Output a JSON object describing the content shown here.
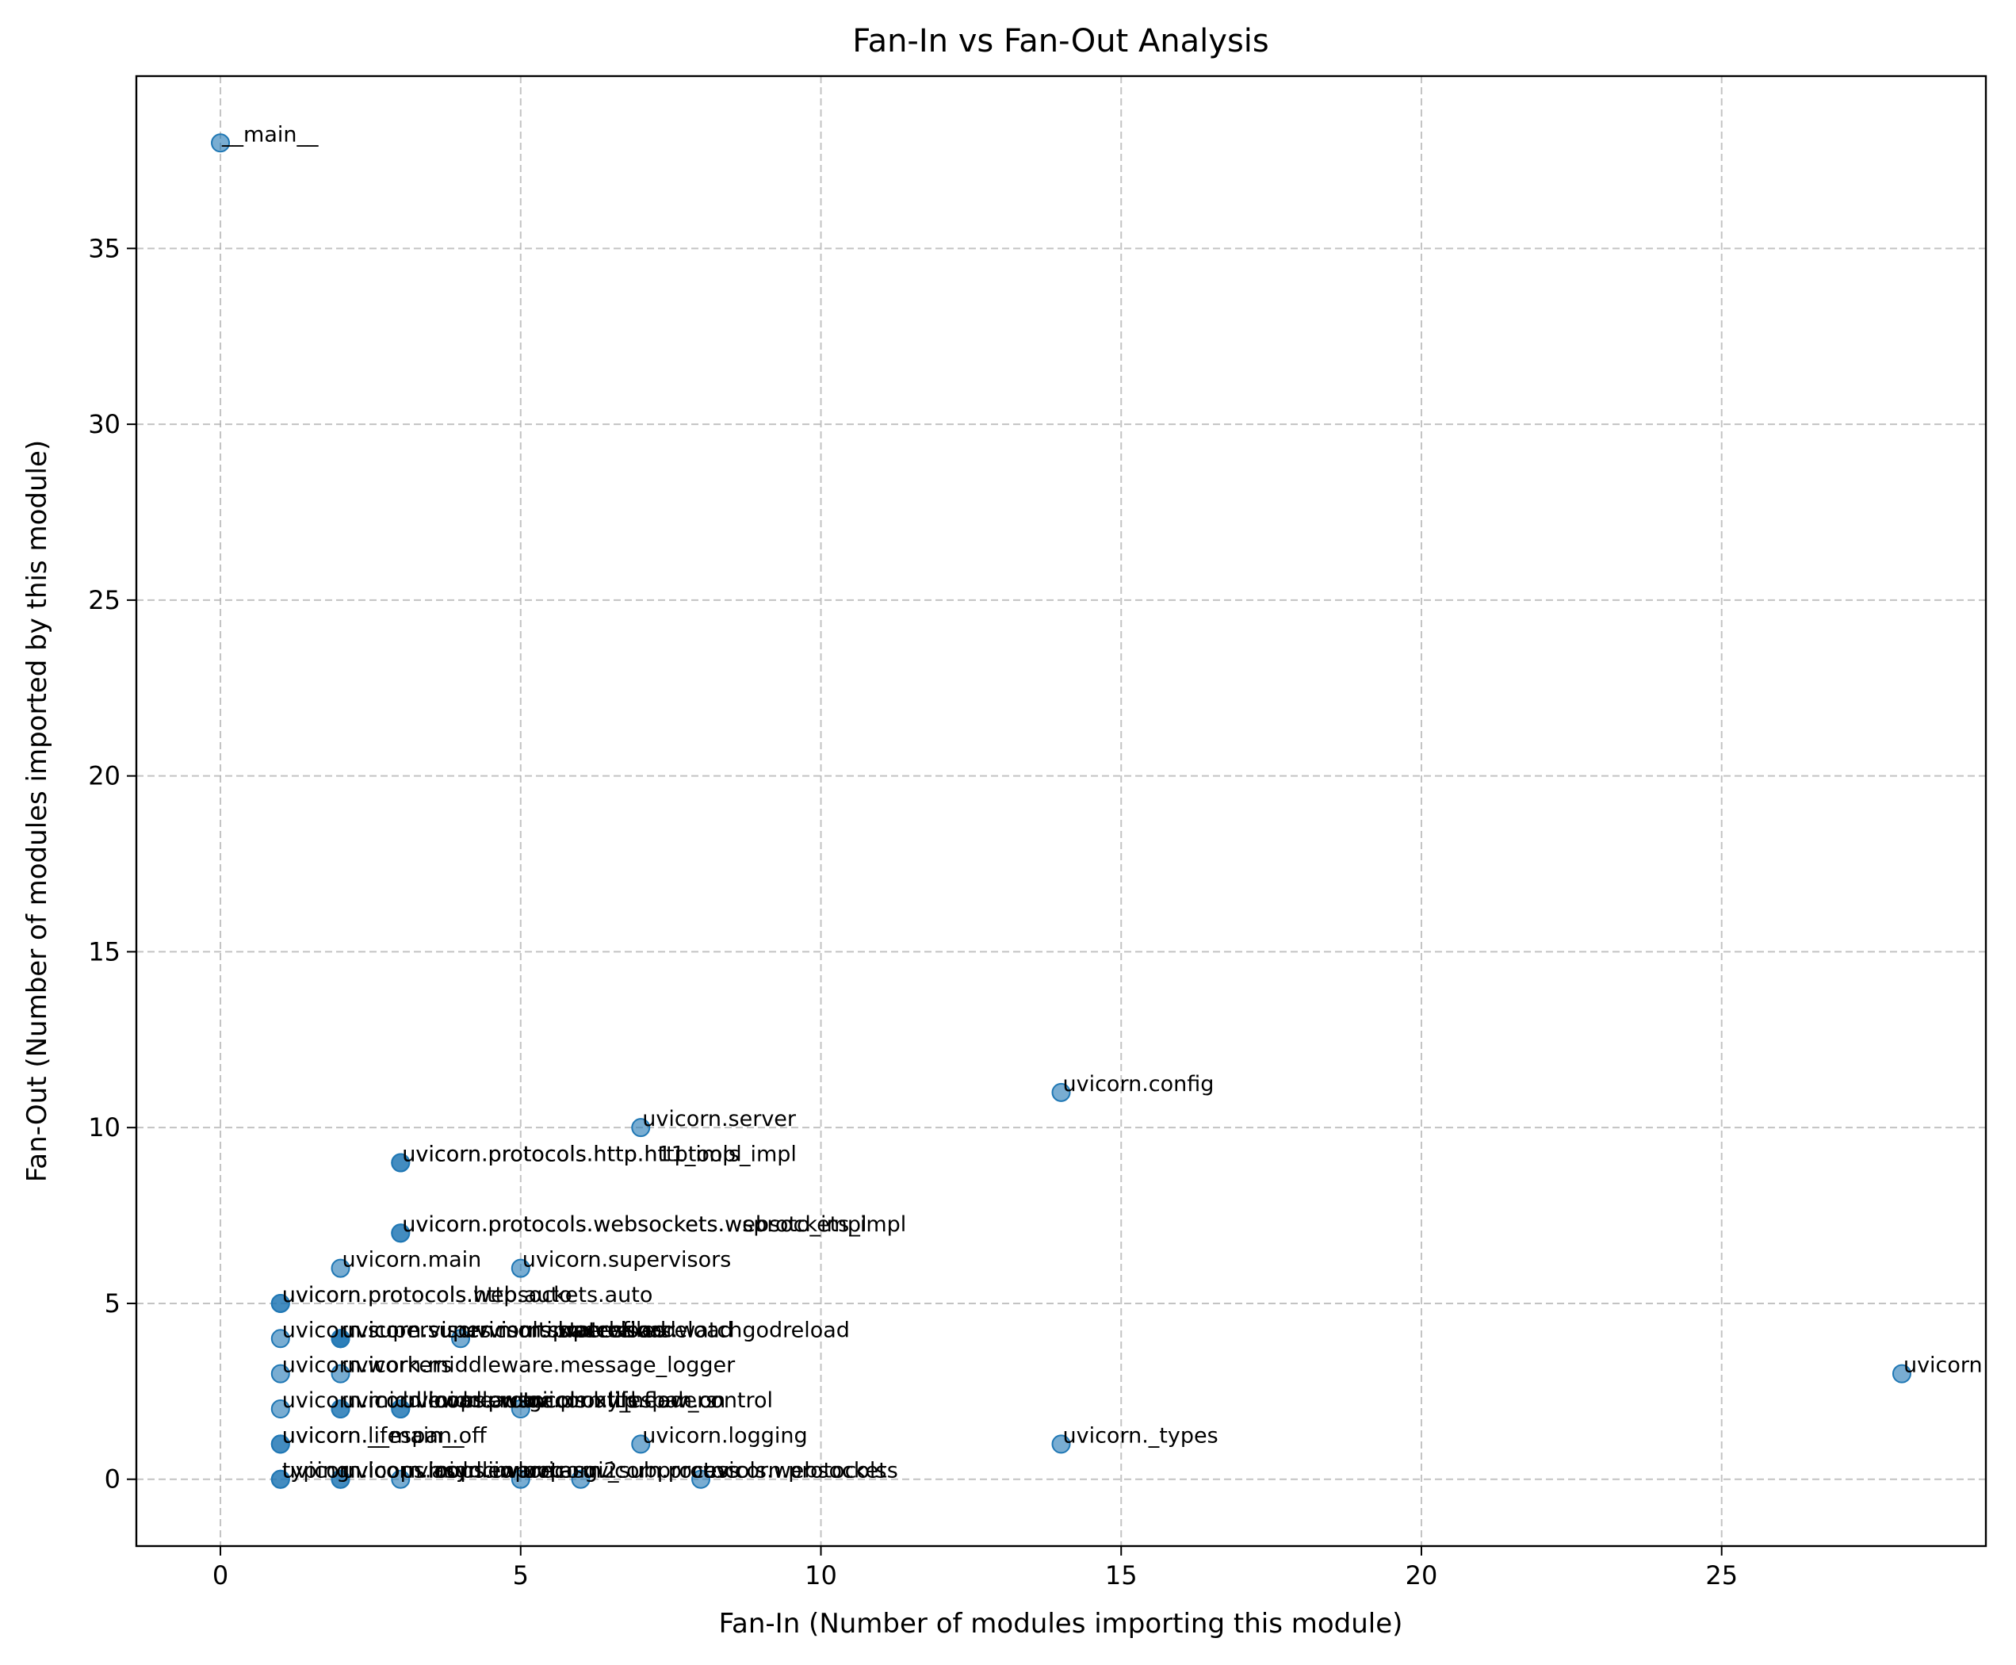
{
  "chart_data": {
    "type": "scatter",
    "title": "Fan-In vs Fan-Out Analysis",
    "xlabel": "Fan-In (Number of modules importing this module)",
    "ylabel": "Fan-Out (Number of modules imported by this module)",
    "xlim": [
      -1.4,
      29.4
    ],
    "ylim": [
      -1.9,
      39.9
    ],
    "xticks": [
      0,
      5,
      10,
      15,
      20,
      25
    ],
    "yticks": [
      0,
      5,
      10,
      15,
      20,
      25,
      30,
      35
    ],
    "grid": true,
    "legend": "none",
    "color": "#1f77b4",
    "points": [
      {
        "label": "__main__",
        "x": 0,
        "y": 38
      },
      {
        "label": "uvicorn.config",
        "x": 14,
        "y": 11
      },
      {
        "label": "uvicorn.server",
        "x": 7,
        "y": 10
      },
      {
        "label": "uvicorn.protocols.http.httptools_impl",
        "x": 3,
        "y": 9
      },
      {
        "label": "uvicorn.protocols.http.h11_impl",
        "x": 3,
        "y": 9
      },
      {
        "label": "uvicorn.protocols.websockets.websockets_impl",
        "x": 3,
        "y": 7
      },
      {
        "label": "uvicorn.protocols.websockets.wsproto_impl",
        "x": 3,
        "y": 7
      },
      {
        "label": "uvicorn.main",
        "x": 2,
        "y": 6
      },
      {
        "label": "uvicorn.supervisors",
        "x": 5,
        "y": 6
      },
      {
        "label": "uvicorn.protocols.http.auto",
        "x": 1,
        "y": 5
      },
      {
        "label": "uvicorn.protocols.websockets.auto",
        "x": 1,
        "y": 5
      },
      {
        "label": "uvicorn.supervisors.basereload",
        "x": 2,
        "y": 4
      },
      {
        "label": "uvicorn.supervisors.statreload",
        "x": 2,
        "y": 4
      },
      {
        "label": "uvicorn.supervisors.watchfilesreload",
        "x": 2,
        "y": 4
      },
      {
        "label": "uvicorn.supervisors.watchgodreload",
        "x": 4,
        "y": 4
      },
      {
        "label": "uvicorn.supervisors.multiprocess",
        "x": 1,
        "y": 4
      },
      {
        "label": "uvicorn.workers",
        "x": 1,
        "y": 3
      },
      {
        "label": "uvicorn.middleware.message_logger",
        "x": 2,
        "y": 3
      },
      {
        "label": "uvicorn.middleware.wsgi",
        "x": 1,
        "y": 2
      },
      {
        "label": "uvicorn.middleware.proxy_headers",
        "x": 2,
        "y": 2
      },
      {
        "label": "uvicorn.loops.auto",
        "x": 2,
        "y": 2
      },
      {
        "label": "uvicorn.protocols.utils",
        "x": 3,
        "y": 2
      },
      {
        "label": "uvicorn.protocols.http.flow_control",
        "x": 3,
        "y": 2
      },
      {
        "label": "uvicorn.lifespan.on",
        "x": 5,
        "y": 2
      },
      {
        "label": "uvicorn",
        "x": 28,
        "y": 3
      },
      {
        "label": "uvicorn.lifespan.off",
        "x": 1,
        "y": 1
      },
      {
        "label": "uvicorn.__main__",
        "x": 1,
        "y": 1
      },
      {
        "label": "uvicorn.logging",
        "x": 7,
        "y": 1
      },
      {
        "label": "uvicorn._types",
        "x": 14,
        "y": 1
      },
      {
        "label": "typing",
        "x": 1,
        "y": 0
      },
      {
        "label": "uvicorn.loops.asyncio",
        "x": 1,
        "y": 0
      },
      {
        "label": "uvicorn.loops.uvloop",
        "x": 2,
        "y": 0
      },
      {
        "label": "uvicorn.middleware.asgi2",
        "x": 2,
        "y": 0
      },
      {
        "label": "uvicorn.importer",
        "x": 3,
        "y": 0
      },
      {
        "label": "uvicorn._subprocess",
        "x": 5,
        "y": 0
      },
      {
        "label": "uvicorn.protocols.websockets",
        "x": 6,
        "y": 0
      },
      {
        "label": "uvicorn.protocols",
        "x": 8,
        "y": 0
      }
    ]
  }
}
